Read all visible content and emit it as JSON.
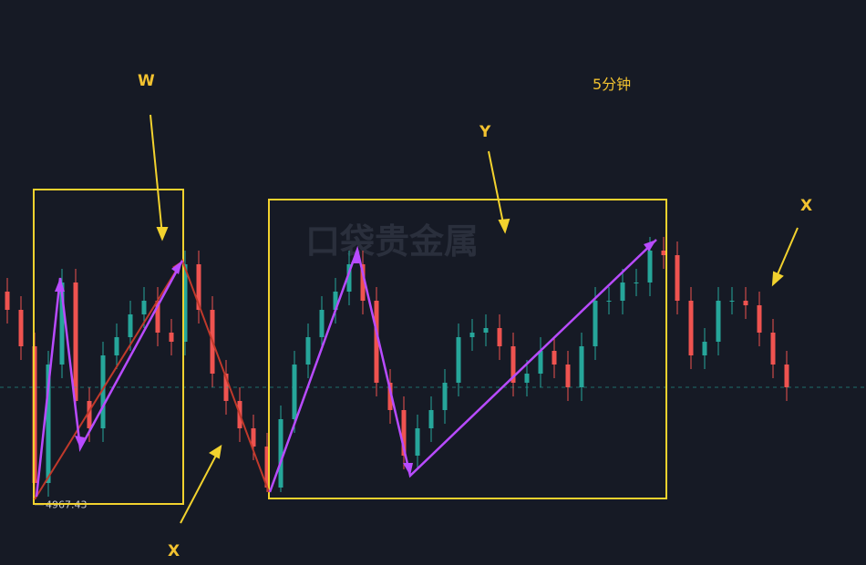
{
  "chart_data": {
    "type": "candlestick",
    "timeframe": "5分钟",
    "watermark": "口袋贵金属",
    "annotations": [
      "W",
      "X",
      "Y",
      "X"
    ],
    "up_color": "#26a69a",
    "down_color": "#ef5350",
    "ylim": [
      4960,
      5022
    ],
    "open": [
      4990,
      4988,
      4984,
      4969,
      4982,
      4991,
      4978,
      4975,
      4983,
      4985,
      4987.5,
      4989,
      4985.5,
      4984.5,
      4993,
      4988,
      4981,
      4978,
      4975,
      4973,
      4968.5,
      4976,
      4982,
      4985,
      4988,
      4990,
      4993,
      4989,
      4980,
      4977,
      4972,
      4975,
      4977,
      4980,
      4985,
      4985.5,
      4986,
      4984,
      4980,
      4981,
      4983.5,
      4982,
      4979.5,
      4984,
      4989,
      4989,
      4991,
      4991,
      4994.5,
      4994,
      4989,
      4983,
      4984.5,
      4989,
      4989,
      4988.5,
      4985.5,
      4982
    ],
    "high": [
      4991.5,
      4989.5,
      4985.5,
      4983.5,
      4992.5,
      4992.5,
      4979.5,
      4984.5,
      4986.5,
      4989,
      4990.5,
      4990.5,
      4987,
      4994.5,
      4994.5,
      4989.5,
      4982.5,
      4979.5,
      4976.5,
      4974.5,
      4977.5,
      4983.5,
      4986.5,
      4989.5,
      4991.5,
      4994.5,
      4994.5,
      4990.5,
      4981.5,
      4978.5,
      4976.5,
      4978.5,
      4981.5,
      4986.5,
      4987,
      4987.5,
      4987.5,
      4985.5,
      4982.5,
      4985,
      4985,
      4983.5,
      4985.5,
      4990.5,
      4990.5,
      4992.5,
      4992.5,
      4996,
      4996,
      4995.5,
      4990.5,
      4986,
      4990.5,
      4990.5,
      4990.5,
      4990,
      4987,
      4983.5
    ],
    "low": [
      4986.5,
      4982.5,
      4967.43,
      4967.5,
      4980.5,
      4976.5,
      4973.5,
      4973.5,
      4981.5,
      4983.5,
      4986,
      4984,
      4983,
      4983,
      4986.5,
      4979.5,
      4976.5,
      4973.5,
      4971.5,
      4968,
      4968,
      4974.5,
      4980.5,
      4983.5,
      4986.5,
      4988.5,
      4987.5,
      4978.5,
      4975.5,
      4970.5,
      4970.5,
      4973.5,
      4975.5,
      4978.5,
      4983.5,
      4984,
      4982.5,
      4978.5,
      4978.5,
      4979.5,
      4980.5,
      4978,
      4978,
      4982.5,
      4987.5,
      4987.5,
      4989.5,
      4989.5,
      4992.5,
      4987.5,
      4981.5,
      4981.5,
      4983,
      4987.5,
      4987,
      4984,
      4980.5,
      4978
    ],
    "close": [
      4988,
      4984,
      4969,
      4982,
      4991,
      4978,
      4975,
      4983,
      4985,
      4987.5,
      4989,
      4985.5,
      4984.5,
      4993,
      4988,
      4981,
      4978,
      4975,
      4973,
      4968.5,
      4976,
      4982,
      4985,
      4988,
      4990,
      4993,
      4989,
      4980,
      4977,
      4972,
      4975,
      4977,
      4980,
      4985,
      4985.5,
      4986,
      4984,
      4980,
      4981,
      4983.5,
      4982,
      4979.5,
      4984,
      4989,
      4989,
      4991,
      4991,
      4994.5,
      4994,
      4989,
      4983,
      4984.5,
      4989,
      4989,
      4988.5,
      4985.5,
      4982,
      4979.5
    ]
  }
}
